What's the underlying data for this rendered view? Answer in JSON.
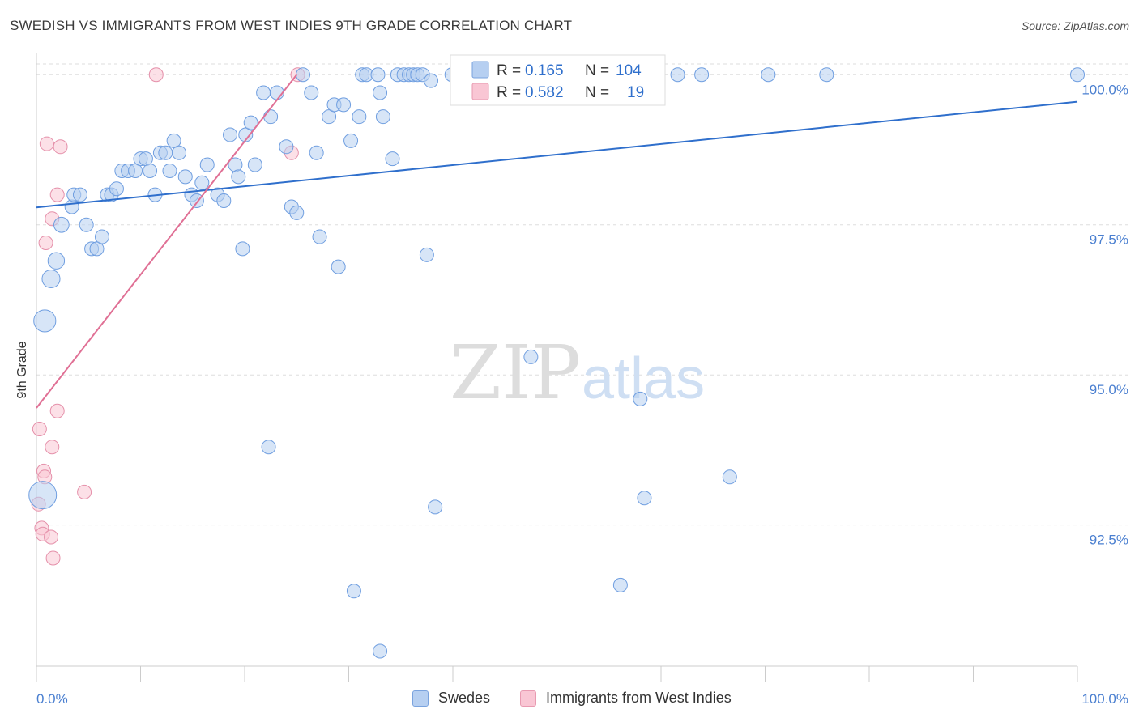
{
  "title": "SWEDISH VS IMMIGRANTS FROM WEST INDIES 9TH GRADE CORRELATION CHART",
  "source": "Source: ZipAtlas.com",
  "watermark": {
    "zip": "ZIP",
    "atlas": "atlas"
  },
  "colors": {
    "blue_fill": "#b6cff1",
    "blue_stroke": "#6f9ee0",
    "blue_line": "#2f6fcc",
    "pink_fill": "#f9c6d4",
    "pink_stroke": "#e590aa",
    "pink_line": "#e07095",
    "tick_label": "#4a7fd0",
    "grid": "#dddddd"
  },
  "legend_box": {
    "rows": [
      {
        "r_label": "R =",
        "r_value": "0.165",
        "n_label": "N =",
        "n_value": "104",
        "series": "blue"
      },
      {
        "r_label": "R =",
        "r_value": "0.582",
        "n_label": "N =",
        "n_value": "19",
        "series": "pink"
      }
    ]
  },
  "legend_bottom": [
    {
      "label": "Swedes",
      "series": "blue"
    },
    {
      "label": "Immigrants from West Indies",
      "series": "pink"
    }
  ],
  "chart_data": {
    "type": "scatter",
    "title": "SWEDISH VS IMMIGRANTS FROM WEST INDIES 9TH GRADE CORRELATION CHART",
    "xlabel": "",
    "ylabel": "9th Grade",
    "xlim": [
      0,
      100
    ],
    "ylim": [
      90.15,
      100.3
    ],
    "x_tick_labels": [
      "0.0%",
      "100.0%"
    ],
    "y_ticks": [
      92.5,
      95.0,
      97.5,
      100.0
    ],
    "y_tick_labels": [
      "92.5%",
      "95.0%",
      "97.5%",
      "100.0%"
    ],
    "grid": true,
    "series": [
      {
        "name": "Swedes",
        "color": "#b6cff1",
        "R": 0.165,
        "N": 104,
        "trend": {
          "x": [
            0,
            100
          ],
          "y": [
            97.79,
            99.55
          ]
        },
        "points": [
          [
            0.6,
            93.0,
            2.0
          ],
          [
            0.8,
            95.9,
            1.6
          ],
          [
            1.4,
            96.6,
            1.3
          ],
          [
            1.9,
            96.9,
            1.2
          ],
          [
            2.4,
            97.5,
            1.1
          ],
          [
            3.4,
            97.8,
            1.0
          ],
          [
            3.6,
            98.0,
            1.0
          ],
          [
            4.2,
            98.0,
            1.0
          ],
          [
            4.8,
            97.5,
            1.0
          ],
          [
            5.3,
            97.1,
            1.0
          ],
          [
            5.8,
            97.1,
            1.0
          ],
          [
            6.3,
            97.3,
            1.0
          ],
          [
            6.8,
            98.0,
            1.0
          ],
          [
            7.2,
            98.0,
            1.0
          ],
          [
            7.7,
            98.1,
            1.0
          ],
          [
            8.2,
            98.4,
            1.0
          ],
          [
            8.8,
            98.4,
            1.0
          ],
          [
            9.5,
            98.4,
            1.0
          ],
          [
            10.0,
            98.6,
            1.0
          ],
          [
            10.5,
            98.6,
            1.0
          ],
          [
            10.9,
            98.4,
            1.0
          ],
          [
            11.4,
            98.0,
            1.0
          ],
          [
            11.9,
            98.7,
            1.0
          ],
          [
            12.4,
            98.7,
            1.0
          ],
          [
            12.8,
            98.4,
            1.0
          ],
          [
            13.2,
            98.9,
            1.0
          ],
          [
            13.7,
            98.7,
            1.0
          ],
          [
            14.3,
            98.3,
            1.0
          ],
          [
            14.9,
            98.0,
            1.0
          ],
          [
            15.4,
            97.9,
            1.0
          ],
          [
            15.9,
            98.2,
            1.0
          ],
          [
            16.4,
            98.5,
            1.0
          ],
          [
            17.4,
            98.0,
            1.0
          ],
          [
            18.0,
            97.9,
            1.0
          ],
          [
            18.6,
            99.0,
            1.0
          ],
          [
            19.1,
            98.5,
            1.0
          ],
          [
            19.4,
            98.3,
            1.0
          ],
          [
            19.8,
            97.1,
            1.0
          ],
          [
            20.1,
            99.0,
            1.0
          ],
          [
            20.6,
            99.2,
            1.0
          ],
          [
            21.0,
            98.5,
            1.0
          ],
          [
            21.8,
            99.7,
            1.0
          ],
          [
            22.5,
            99.3,
            1.0
          ],
          [
            23.1,
            99.7,
            1.0
          ],
          [
            24.0,
            98.8,
            1.0
          ],
          [
            24.5,
            97.8,
            1.0
          ],
          [
            25.0,
            97.7,
            1.0
          ],
          [
            25.6,
            100.0,
            1.0
          ],
          [
            26.4,
            99.7,
            1.0
          ],
          [
            26.9,
            98.7,
            1.0
          ],
          [
            27.2,
            97.3,
            1.0
          ],
          [
            28.1,
            99.3,
            1.0
          ],
          [
            28.6,
            99.5,
            1.0
          ],
          [
            29.0,
            96.8,
            1.0
          ],
          [
            29.5,
            99.5,
            1.0
          ],
          [
            30.2,
            98.9,
            1.0
          ],
          [
            31.0,
            99.3,
            1.0
          ],
          [
            31.3,
            100.0,
            1.0
          ],
          [
            31.7,
            100.0,
            1.0
          ],
          [
            32.8,
            100.0,
            1.0
          ],
          [
            33.0,
            99.7,
            1.0
          ],
          [
            33.3,
            99.3,
            1.0
          ],
          [
            34.2,
            98.6,
            1.0
          ],
          [
            34.7,
            100.0,
            1.0
          ],
          [
            35.3,
            100.0,
            1.0
          ],
          [
            35.8,
            100.0,
            1.0
          ],
          [
            36.2,
            100.0,
            1.0
          ],
          [
            36.6,
            100.0,
            1.0
          ],
          [
            37.1,
            100.0,
            1.0
          ],
          [
            37.5,
            97.0,
            1.0
          ],
          [
            37.9,
            99.9,
            1.0
          ],
          [
            39.9,
            100.0,
            1.0
          ],
          [
            40.7,
            100.0,
            1.0
          ],
          [
            41.7,
            100.0,
            1.0
          ],
          [
            42.4,
            100.0,
            1.0
          ],
          [
            43.0,
            100.0,
            1.0
          ],
          [
            43.9,
            100.0,
            1.0
          ],
          [
            45.6,
            100.0,
            1.0
          ],
          [
            46.7,
            100.0,
            1.0
          ],
          [
            47.7,
            100.0,
            1.0
          ],
          [
            48.7,
            100.0,
            1.0
          ],
          [
            49.7,
            100.0,
            1.0
          ],
          [
            50.6,
            100.0,
            1.0
          ],
          [
            51.6,
            100.0,
            1.0
          ],
          [
            52.6,
            100.0,
            1.0
          ],
          [
            53.6,
            100.0,
            1.0
          ],
          [
            54.6,
            100.0,
            1.0
          ],
          [
            55.6,
            100.0,
            1.0
          ],
          [
            58.6,
            100.0,
            1.0
          ],
          [
            61.6,
            100.0,
            1.0
          ],
          [
            63.9,
            100.0,
            1.0
          ],
          [
            47.5,
            95.3,
            1.0
          ],
          [
            58.0,
            94.6,
            1.0
          ],
          [
            58.4,
            92.95,
            1.0
          ],
          [
            66.6,
            93.3,
            1.0
          ],
          [
            22.3,
            93.8,
            1.0
          ],
          [
            38.3,
            92.8,
            1.0
          ],
          [
            30.5,
            91.4,
            1.0
          ],
          [
            56.1,
            91.5,
            1.0
          ],
          [
            33.0,
            90.4,
            1.0
          ],
          [
            70.3,
            100.0,
            1.0
          ],
          [
            75.9,
            100.0,
            1.0
          ],
          [
            100.0,
            100.0,
            1.0
          ],
          [
            42.0,
            99.95,
            1.0
          ]
        ]
      },
      {
        "name": "Immigrants from West Indies",
        "color": "#f9c6d4",
        "R": 0.582,
        "N": 19,
        "trend": {
          "x": [
            0,
            25.0
          ],
          "y": [
            94.45,
            100.0
          ]
        },
        "points": [
          [
            11.5,
            100.0,
            1.0
          ],
          [
            25.1,
            100.0,
            1.0
          ],
          [
            1.0,
            98.85,
            1.0
          ],
          [
            2.3,
            98.8,
            1.0
          ],
          [
            24.5,
            98.7,
            1.0
          ],
          [
            2.0,
            98.0,
            1.0
          ],
          [
            1.5,
            97.6,
            1.0
          ],
          [
            0.9,
            97.2,
            1.0
          ],
          [
            2.0,
            94.4,
            1.0
          ],
          [
            0.3,
            94.1,
            1.0
          ],
          [
            1.5,
            93.8,
            1.0
          ],
          [
            0.7,
            93.4,
            1.0
          ],
          [
            0.8,
            93.3,
            1.0
          ],
          [
            4.6,
            93.05,
            1.0
          ],
          [
            0.2,
            92.85,
            1.0
          ],
          [
            0.5,
            92.45,
            1.0
          ],
          [
            0.6,
            92.35,
            1.0
          ],
          [
            1.4,
            92.3,
            1.0
          ],
          [
            1.6,
            91.95,
            1.0
          ]
        ]
      }
    ]
  }
}
